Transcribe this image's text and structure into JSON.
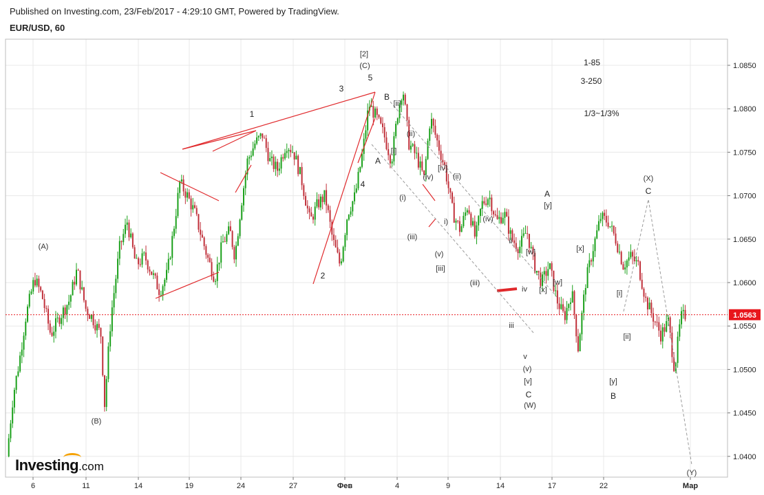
{
  "header": {
    "published": "Published on Investing.com, 23/Feb/2017 - 4:29:10 GMT, Powered by TradingView.",
    "symbol": "EUR/USD, 60"
  },
  "logo": {
    "text": "Investing",
    "suffix": ".com"
  },
  "colors": {
    "up": "#1aa01a",
    "down": "#c0303a",
    "trend": "#e0282b",
    "channel": "#9a9a9a",
    "last_price": "#e8161c",
    "grid": "#e8e8e8"
  },
  "chart_data": {
    "type": "candlestick",
    "title": "EUR/USD, 60",
    "ylim": [
      1.0375,
      1.088
    ],
    "y_ticks": [
      "1.0850",
      "1.0800",
      "1.0750",
      "1.0700",
      "1.0650",
      "1.0600",
      "1.0550",
      "1.0500",
      "1.0450",
      "1.0400"
    ],
    "x_ticks": [
      "6",
      "11",
      "14",
      "19",
      "24",
      "27",
      "Фев",
      "4",
      "9",
      "14",
      "17",
      "22",
      "Мар"
    ],
    "last_price": "1.0563",
    "price_path": [
      [
        0,
        1.04
      ],
      [
        0.5,
        1.047
      ],
      [
        1,
        1.051
      ],
      [
        1.5,
        1.056
      ],
      [
        2.2,
        1.0605
      ],
      [
        2.8,
        1.0585
      ],
      [
        3.5,
        1.054
      ],
      [
        4.2,
        1.056
      ],
      [
        5,
        1.058
      ],
      [
        5.6,
        1.0615
      ],
      [
        6.3,
        1.057
      ],
      [
        6.8,
        1.056
      ],
      [
        7.5,
        1.054
      ],
      [
        7.8,
        1.046
      ],
      [
        8.3,
        1.056
      ],
      [
        9.0,
        1.064
      ],
      [
        9.6,
        1.067
      ],
      [
        10.3,
        1.062
      ],
      [
        11.0,
        1.063
      ],
      [
        11.6,
        1.061
      ],
      [
        12.2,
        1.059
      ],
      [
        12.8,
        1.061
      ],
      [
        13.3,
        1.066
      ],
      [
        13.8,
        1.0715
      ],
      [
        14.4,
        1.07
      ],
      [
        15.0,
        1.068
      ],
      [
        15.6,
        1.065
      ],
      [
        16.1,
        1.0625
      ],
      [
        16.6,
        1.0605
      ],
      [
        17.2,
        1.0645
      ],
      [
        17.8,
        1.066
      ],
      [
        18.2,
        1.063
      ],
      [
        18.7,
        1.069
      ],
      [
        19.2,
        1.074
      ],
      [
        19.8,
        1.076
      ],
      [
        20.4,
        1.077
      ],
      [
        21.0,
        1.074
      ],
      [
        21.6,
        1.073
      ],
      [
        22.3,
        1.076
      ],
      [
        22.9,
        1.075
      ],
      [
        23.5,
        1.072
      ],
      [
        24.2,
        1.067
      ],
      [
        24.8,
        1.069
      ],
      [
        25.4,
        1.07
      ],
      [
        26.0,
        1.065
      ],
      [
        26.6,
        1.062
      ],
      [
        27.2,
        1.068
      ],
      [
        27.8,
        1.07
      ],
      [
        28.4,
        1.075
      ],
      [
        28.9,
        1.0805
      ],
      [
        29.5,
        1.079
      ],
      [
        30.1,
        1.077
      ],
      [
        30.7,
        1.074
      ],
      [
        31.2,
        1.0795
      ],
      [
        31.6,
        1.0825
      ],
      [
        32.1,
        1.076
      ],
      [
        32.7,
        1.0745
      ],
      [
        33.3,
        1.072
      ],
      [
        33.8,
        1.079
      ],
      [
        34.4,
        1.076
      ],
      [
        35.0,
        1.073
      ],
      [
        35.6,
        1.068
      ],
      [
        36.2,
        1.066
      ],
      [
        36.8,
        1.069
      ],
      [
        37.4,
        1.065
      ],
      [
        37.9,
        1.069
      ],
      [
        38.5,
        1.07
      ],
      [
        39.1,
        1.067
      ],
      [
        39.7,
        1.068
      ],
      [
        40.3,
        1.065
      ],
      [
        40.9,
        1.064
      ],
      [
        41.5,
        1.066
      ],
      [
        42.1,
        1.062
      ],
      [
        42.7,
        1.06
      ],
      [
        43.3,
        1.062
      ],
      [
        43.9,
        1.058
      ],
      [
        44.5,
        1.056
      ],
      [
        45.1,
        1.059
      ],
      [
        45.6,
        1.0525
      ],
      [
        46.2,
        1.06
      ],
      [
        46.8,
        1.064
      ],
      [
        47.4,
        1.0675
      ],
      [
        48.0,
        1.067
      ],
      [
        48.6,
        1.065
      ],
      [
        49.2,
        1.062
      ],
      [
        49.8,
        1.063
      ],
      [
        50.4,
        1.062
      ],
      [
        51.0,
        1.058
      ],
      [
        51.6,
        1.056
      ],
      [
        52.2,
        1.054
      ],
      [
        52.8,
        1.0555
      ],
      [
        53.3,
        1.05
      ],
      [
        53.8,
        1.056
      ],
      [
        54.2,
        1.0563
      ]
    ]
  },
  "annotations": [
    {
      "id": "A_paren",
      "text": "(A)"
    },
    {
      "id": "B_paren",
      "text": "(B)"
    },
    {
      "id": "w1",
      "text": "1"
    },
    {
      "id": "w2",
      "text": "2"
    },
    {
      "id": "w3",
      "text": "3"
    },
    {
      "id": "w4",
      "text": "4"
    },
    {
      "id": "w5",
      "text": "5"
    },
    {
      "id": "top2",
      "text": "[2]"
    },
    {
      "id": "topC",
      "text": "(C)"
    },
    {
      "id": "Bmk",
      "text": "B"
    },
    {
      "id": "Amk",
      "text": "A"
    },
    {
      "id": "ii_br",
      "text": "[ii]"
    },
    {
      "id": "i_br",
      "text": "[i]"
    },
    {
      "id": "ii_p1",
      "text": "(ii)"
    },
    {
      "id": "iv_br",
      "text": "[iv]"
    },
    {
      "id": "iv_p",
      "text": "(iv)"
    },
    {
      "id": "ii_p2",
      "text": "(ii)"
    },
    {
      "id": "i_p",
      "text": "(i)"
    },
    {
      "id": "iii_p1",
      "text": "(iii)"
    },
    {
      "id": "i_p2",
      "text": "i)"
    },
    {
      "id": "v_p1",
      "text": "(v)"
    },
    {
      "id": "iii_br",
      "text": "[iii]"
    },
    {
      "id": "iv_p2",
      "text": "(iv)"
    },
    {
      "id": "iii_p2",
      "text": "(iii)"
    },
    {
      "id": "ii_sm",
      "text": "ii"
    },
    {
      "id": "iv_sm",
      "text": "iv"
    },
    {
      "id": "iii_sm",
      "text": "iii"
    },
    {
      "id": "v_sm",
      "text": "v"
    },
    {
      "id": "v_p2",
      "text": "(v)"
    },
    {
      "id": "v_br",
      "text": "[v]"
    },
    {
      "id": "C_mk",
      "text": "C"
    },
    {
      "id": "W_p",
      "text": "(W)"
    },
    {
      "id": "w_br1",
      "text": "[w]"
    },
    {
      "id": "x_br1",
      "text": "[x]"
    },
    {
      "id": "w_br2",
      "text": "[w]"
    },
    {
      "id": "A_mk2",
      "text": "A"
    },
    {
      "id": "y_br1",
      "text": "[y]"
    },
    {
      "id": "x_br2",
      "text": "[x]"
    },
    {
      "id": "i_br2",
      "text": "[i]"
    },
    {
      "id": "ii_br2",
      "text": "[ii]"
    },
    {
      "id": "y_br2",
      "text": "[y]"
    },
    {
      "id": "B_mk2",
      "text": "B"
    },
    {
      "id": "X_p",
      "text": "(X)"
    },
    {
      "id": "C_mk2",
      "text": "C"
    },
    {
      "id": "Y_p",
      "text": "(Y)"
    },
    {
      "id": "note1",
      "text": "1-85"
    },
    {
      "id": "note2",
      "text": "3-250"
    },
    {
      "id": "note3",
      "text": "1/3~1/3%"
    }
  ]
}
